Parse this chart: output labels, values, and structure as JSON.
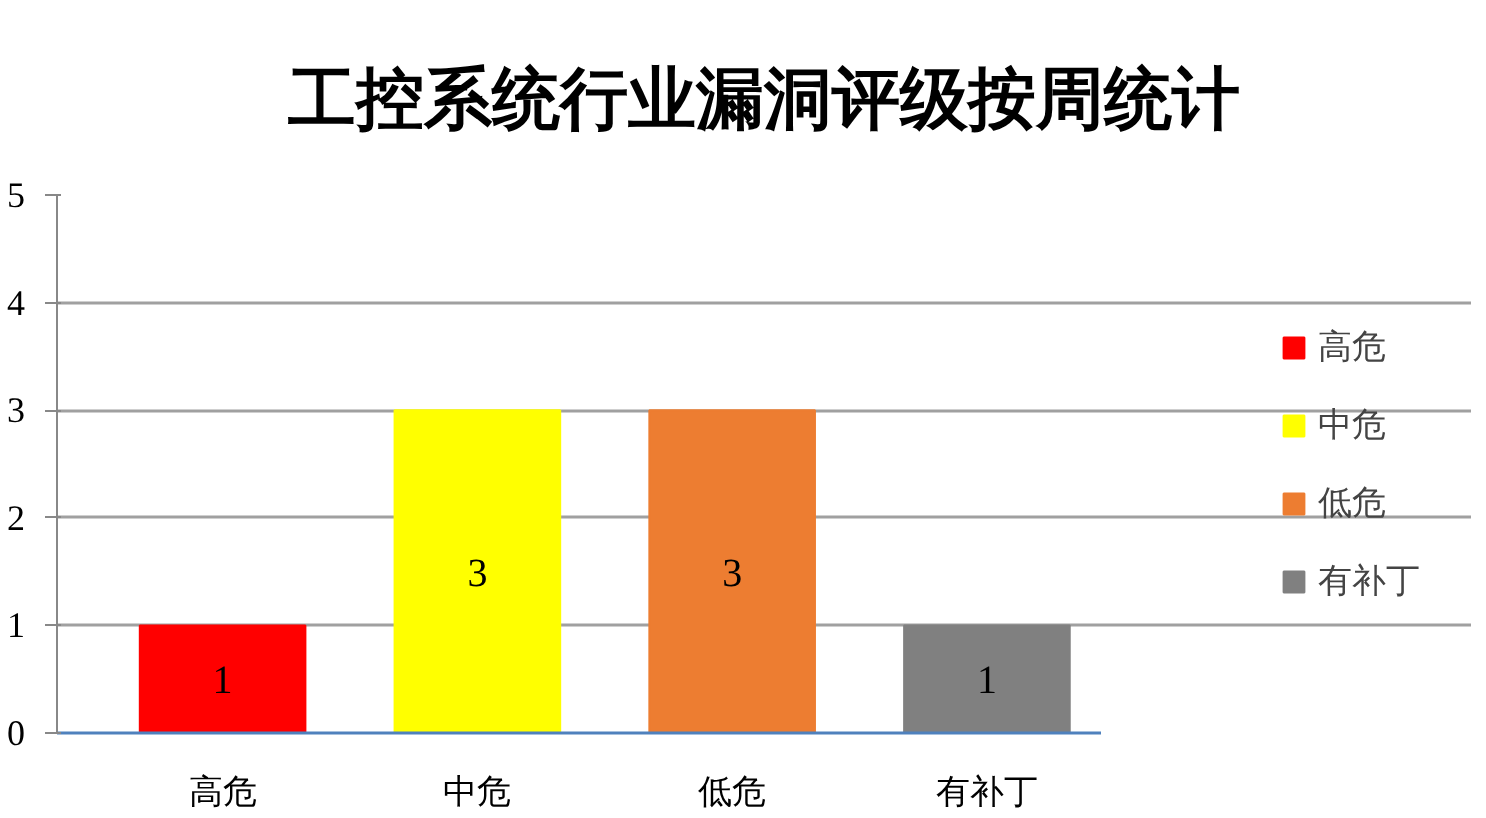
{
  "chart_data": {
    "type": "bar",
    "title": "工控系统行业漏洞评级按周统计",
    "categories": [
      "高危",
      "中危",
      "低危",
      "有补丁"
    ],
    "stacked": true,
    "series": [
      {
        "name": "高危",
        "color": "#ff0000",
        "values": [
          1,
          null,
          null,
          null
        ]
      },
      {
        "name": "中危",
        "color": "#ffff00",
        "values": [
          null,
          3,
          null,
          null
        ]
      },
      {
        "name": "低危",
        "color": "#ed7d31",
        "values": [
          null,
          null,
          3,
          null
        ]
      },
      {
        "name": "有补丁",
        "color": "#808080",
        "values": [
          null,
          null,
          null,
          1
        ]
      }
    ],
    "ylim": [
      0,
      5
    ],
    "yticks": [
      0,
      1,
      2,
      3,
      4,
      5
    ],
    "grid": "y",
    "legend": "right",
    "data_labels": true
  }
}
